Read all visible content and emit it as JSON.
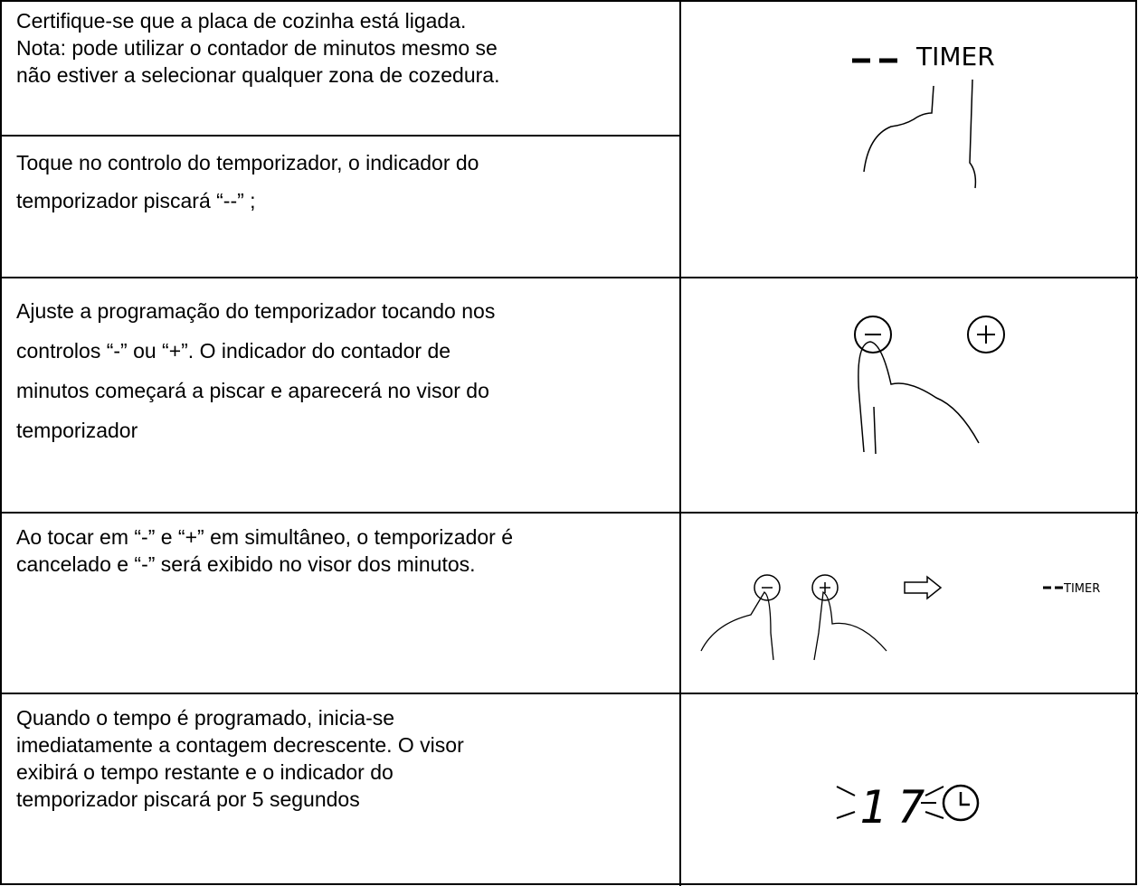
{
  "table": {
    "rows": [
      {
        "lines": [
          "Certifique-se que a placa de cozinha está ligada.",
          "Nota: pode utilizar o contador de minutos mesmo se",
          "não estiver a selecionar qualquer zona de cozedura."
        ]
      },
      {
        "lines": [
          "Toque no controlo do temporizador, o indicador do",
          "temporizador piscará “--” ;"
        ]
      },
      {
        "lines": [
          "Ajuste a programação do temporizador tocando nos",
          "controlos “-” ou “+”. O indicador do contador de",
          "minutos começará a piscar e aparecerá no visor do",
          "temporizador"
        ]
      },
      {
        "lines": [
          "Ao tocar em “-” e “+” em simultâneo, o temporizador é",
          "cancelado e “-” será exibido no visor dos minutos."
        ]
      },
      {
        "lines": [
          "Quando o tempo é programado, inicia-se",
          "imediatamente a contagem decrescente. O visor",
          "exibirá o tempo restante e o indicador do",
          "temporizador piscará por 5 segundos"
        ]
      }
    ],
    "images": [
      {
        "label": "TIMER"
      },
      {
        "label": "TIMER"
      },
      {
        "display": "17"
      }
    ]
  }
}
